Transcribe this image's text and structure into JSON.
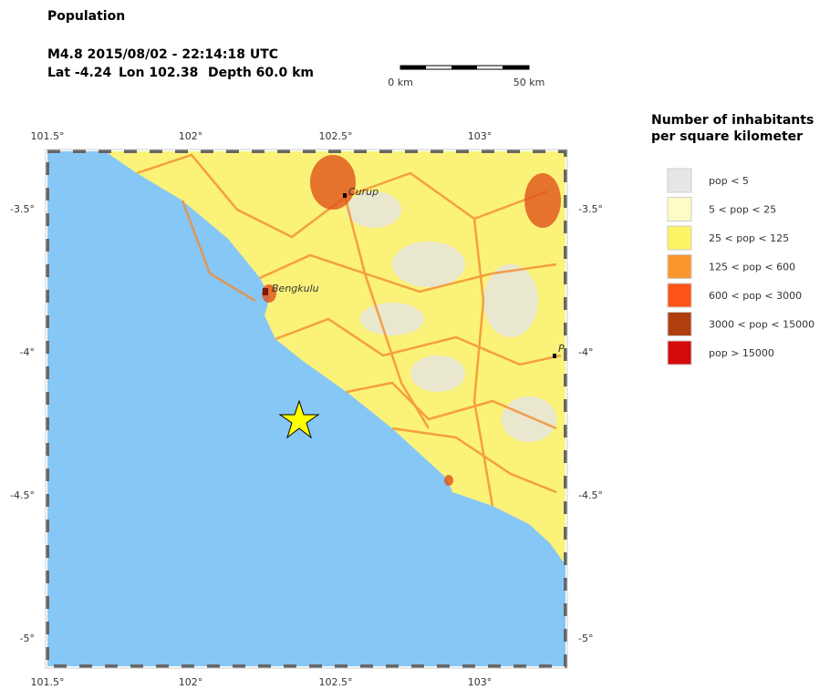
{
  "header": {
    "title": "Population",
    "event": "M4.8  2015/08/02 - 22:14:18 UTC",
    "lat": "Lat -4.24",
    "lon": "Lon 102.38",
    "depth": "Depth  60.0 km"
  },
  "scale": {
    "start": "0 km",
    "end": "50 km"
  },
  "map": {
    "x_labels": [
      "101.5°",
      "102°",
      "102.5°",
      "103°"
    ],
    "y_labels": [
      "-3.5°",
      "-4°",
      "-4.5°",
      "-5°"
    ],
    "places": [
      "Curup",
      "Bengkulu",
      "P"
    ]
  },
  "legend": {
    "title": [
      "Number of inhabitants",
      "per square kilometer"
    ],
    "items": [
      {
        "label": "pop < 5",
        "color": "#e6e6e6"
      },
      {
        "label": "5 < pop < 25",
        "color": "#fdfbc6"
      },
      {
        "label": "25 < pop < 125",
        "color": "#fbf565"
      },
      {
        "label": "125 < pop < 600",
        "color": "#f9962c"
      },
      {
        "label": "600 < pop < 3000",
        "color": "#fb5416"
      },
      {
        "label": "3000 < pop < 15000",
        "color": "#b03f10"
      },
      {
        "label": "pop > 15000",
        "color": "#d40a0a"
      }
    ]
  }
}
